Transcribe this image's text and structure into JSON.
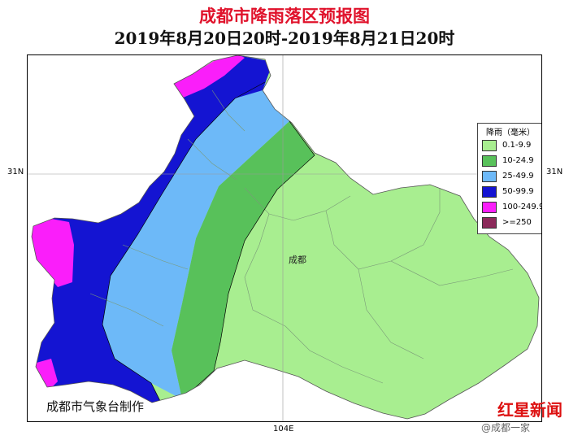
{
  "title": "成都市降雨落区预报图",
  "subtitle": "2019年8月20日20时-2019年8月21日20时",
  "axes": {
    "lat_left": "31N",
    "lat_right": "31N",
    "lon_bottom": "104E"
  },
  "legend": {
    "title": "降雨（毫米）",
    "items": [
      {
        "label": "0.1-9.9",
        "color": "#a8ee90"
      },
      {
        "label": "10-24.9",
        "color": "#58c15a"
      },
      {
        "label": "25-49.9",
        "color": "#6db9f8"
      },
      {
        "label": "50-99.9",
        "color": "#1414d2"
      },
      {
        "label": "100-249.9",
        "color": "#fa1efa"
      },
      {
        "label": ">=250",
        "color": "#8b2a5a"
      }
    ]
  },
  "city_label": "成都",
  "credit": "成都市气象台制作",
  "watermark": {
    "weibo": "@成都一家",
    "logo": "红星新闻"
  }
}
